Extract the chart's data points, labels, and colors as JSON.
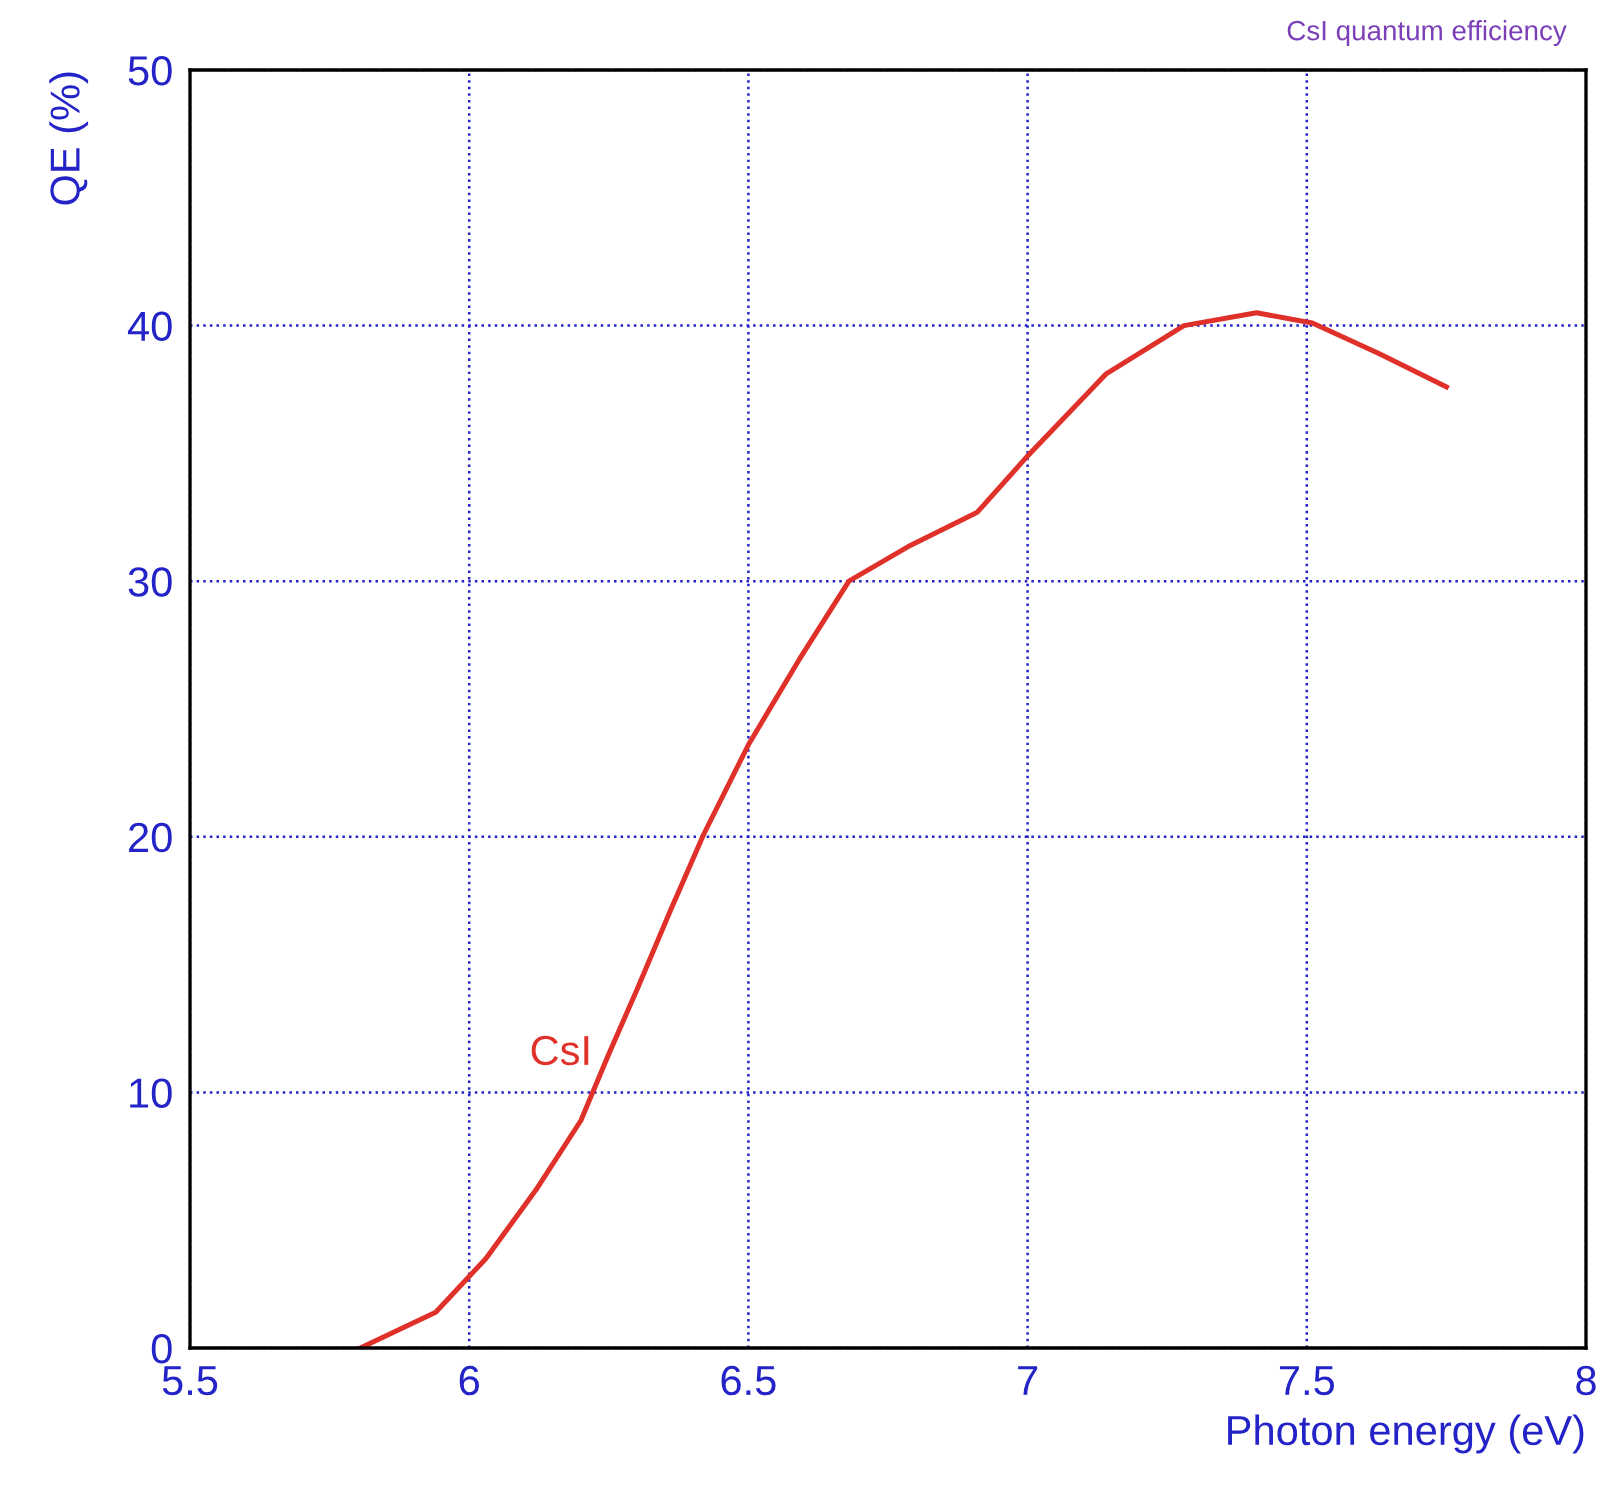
{
  "chart_data": {
    "type": "line",
    "title": "CsI quantum efficiency",
    "xlabel": "Photon energy (eV)",
    "ylabel": "QE (%)",
    "x": [
      5.805,
      5.94,
      6.03,
      6.12,
      6.2,
      6.25,
      6.3,
      6.36,
      6.42,
      6.5,
      6.59,
      6.68,
      6.79,
      6.91,
      7.0,
      7.14,
      7.28,
      7.41,
      7.51,
      7.63,
      7.75
    ],
    "series": [
      {
        "name": "CsI",
        "color": "#e0302a",
        "values": [
          0,
          1.4,
          3.5,
          6.2,
          8.9,
          11.5,
          14,
          17.1,
          20.1,
          23.6,
          26.9,
          30.0,
          31.4,
          32.7,
          34.9,
          38.1,
          40.0,
          40.5,
          40.1,
          38.9,
          37.6
        ]
      }
    ],
    "xlim": [
      5.5,
      8
    ],
    "ylim": [
      0,
      50
    ],
    "xticks": [
      5.5,
      6,
      6.5,
      7,
      7.5,
      8
    ],
    "yticks": [
      0,
      10,
      20,
      30,
      40,
      50
    ],
    "grid": true,
    "legend": false,
    "marker": "none",
    "line_style": "solid"
  }
}
